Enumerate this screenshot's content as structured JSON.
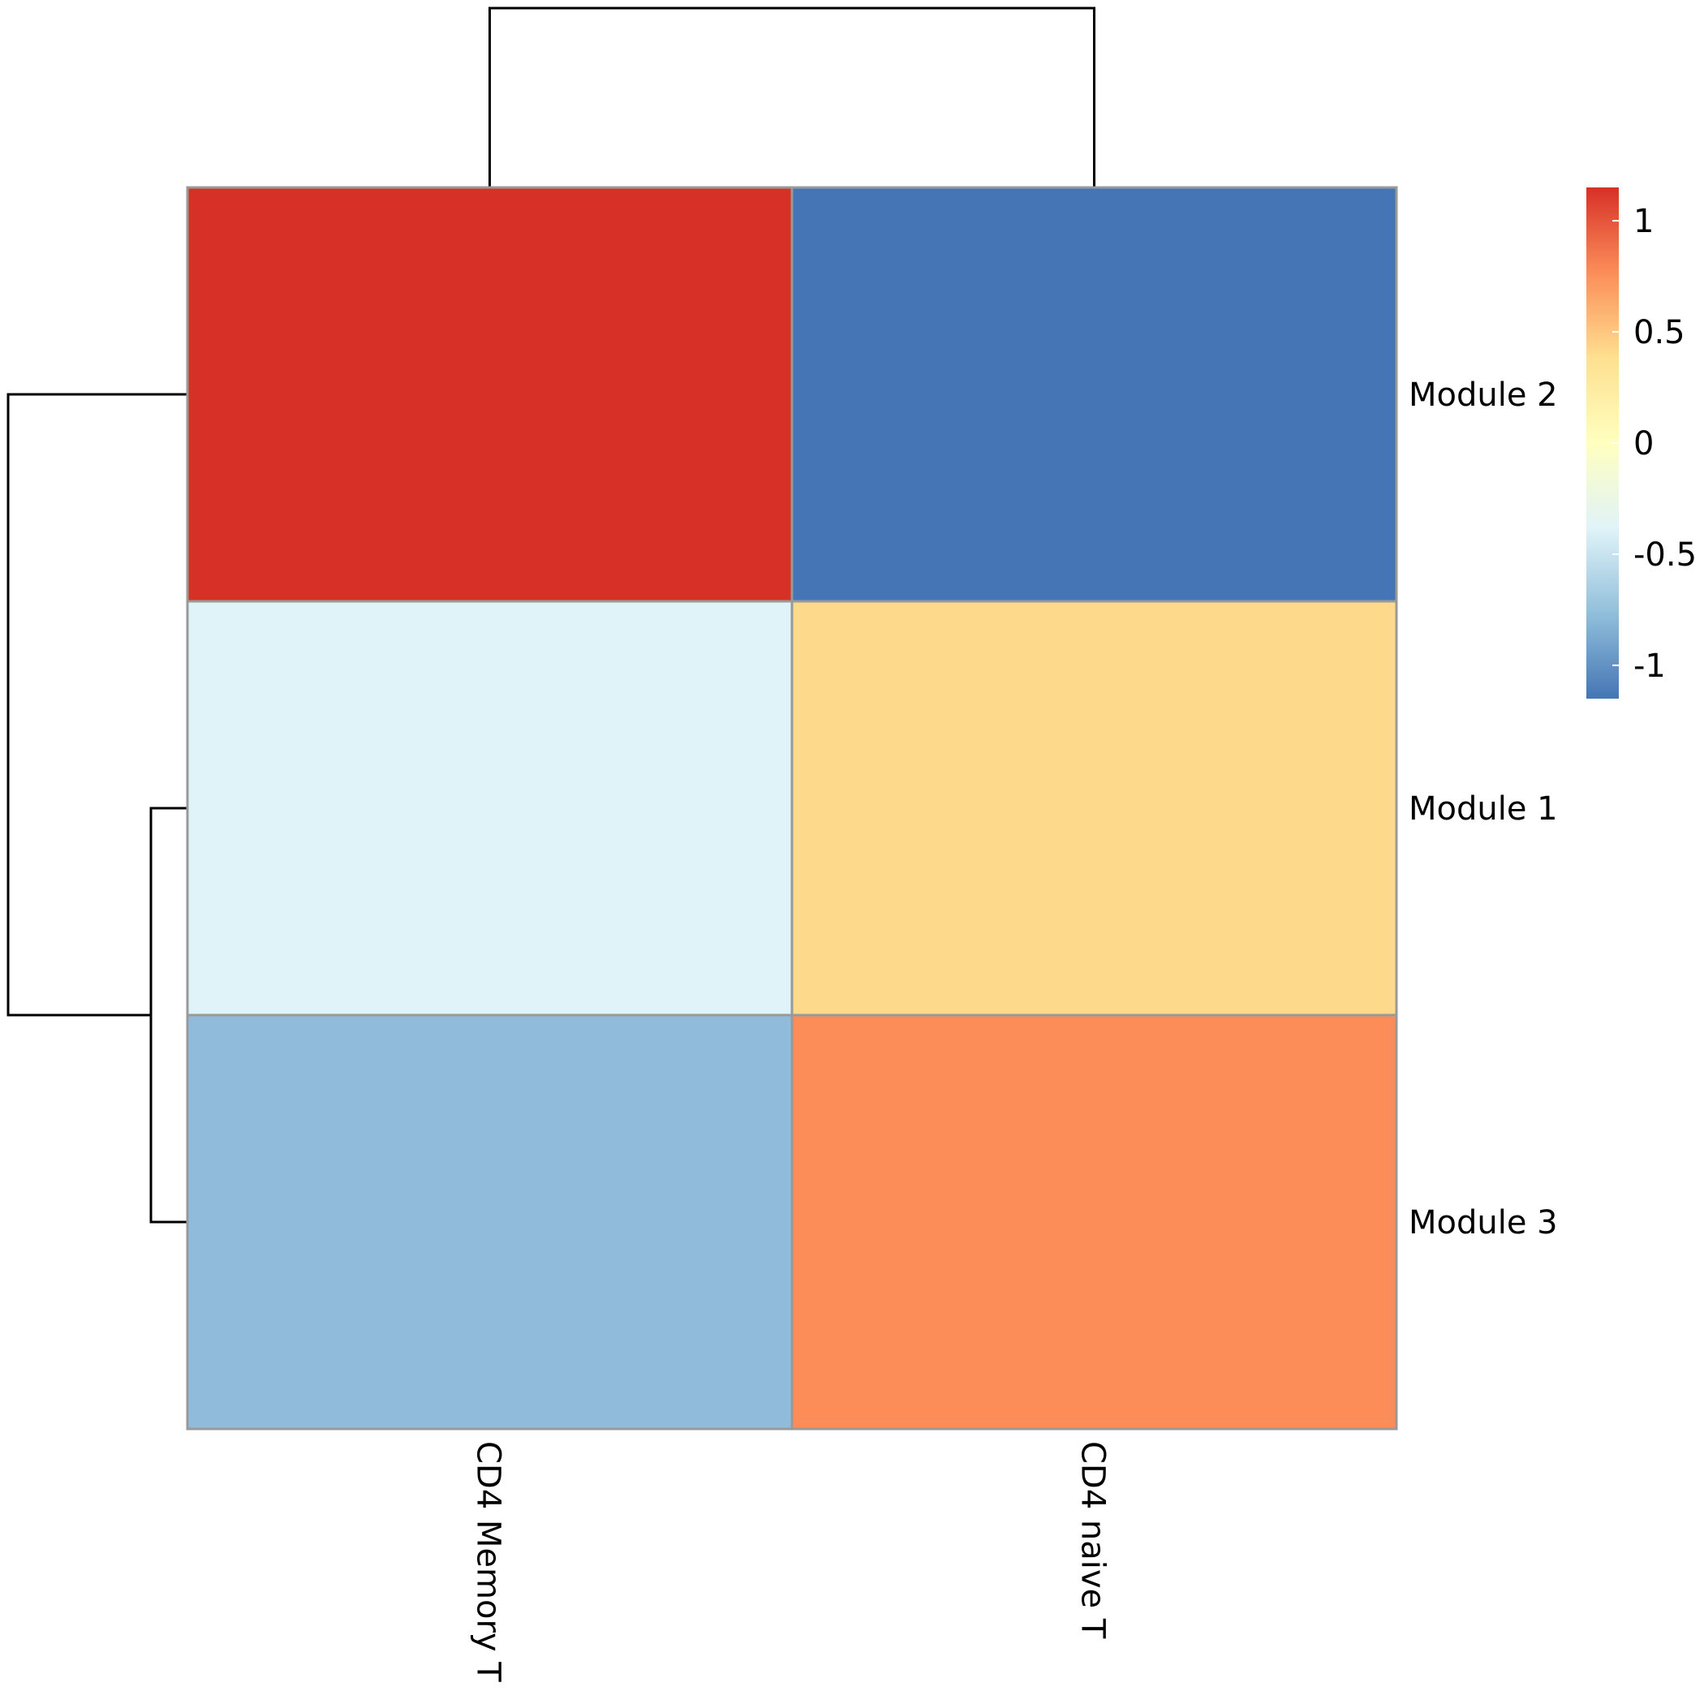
{
  "chart_data": {
    "type": "heatmap",
    "columns": [
      "CD4 Memory T",
      "CD4 naive T"
    ],
    "rows": [
      "Module 2",
      "Module 1",
      "Module 3"
    ],
    "values": [
      [
        1.15,
        -1.15
      ],
      [
        -0.45,
        0.55
      ],
      [
        -0.7,
        0.85
      ]
    ],
    "colors": [
      [
        "#D73027",
        "#4575B4"
      ],
      [
        "#E0F3F8",
        "#FDD98C"
      ],
      [
        "#91BBDA",
        "#FC8D59"
      ]
    ],
    "legend": {
      "ticks": [
        "1",
        "0.5",
        "0",
        "-0.5",
        "-1"
      ],
      "tick_values": [
        1,
        0.5,
        0,
        -0.5,
        -1
      ],
      "range": [
        -1.15,
        1.15
      ],
      "gradient": [
        "#4575B4",
        "#91BFDB",
        "#E0F3F8",
        "#FFFFBF",
        "#FEE090",
        "#FC8D59",
        "#D73027"
      ],
      "placement": "right"
    },
    "dendrograms": {
      "columns": "top",
      "rows": "left",
      "row_clusters": [
        [
          "Module 1",
          "Module 3"
        ],
        [
          "Module 2"
        ]
      ]
    },
    "cell_border_color": "#999999"
  }
}
